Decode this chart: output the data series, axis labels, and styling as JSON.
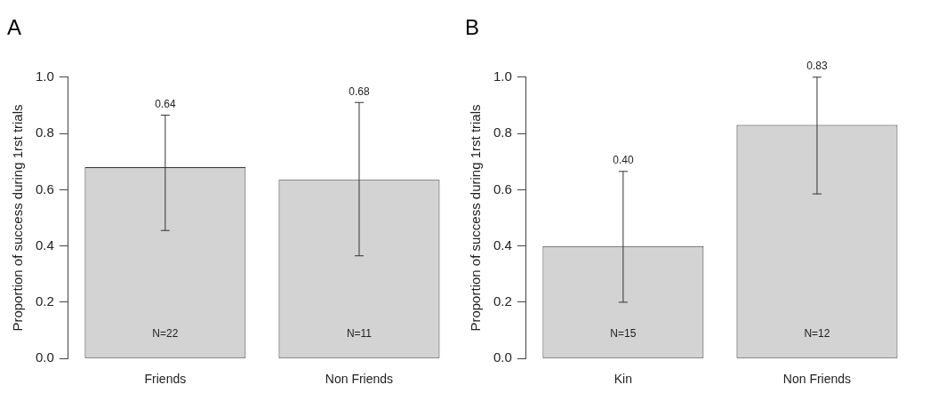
{
  "chart_data": [
    {
      "type": "bar",
      "title": "A",
      "ylabel": "Proportion of success during 1rst trials",
      "categories": [
        "Friends",
        "Non Friends"
      ],
      "values": [
        0.68,
        0.635
      ],
      "color": "#d3d3d3",
      "errors": [
        [
          0.455,
          0.865
        ],
        [
          0.365,
          0.91
        ]
      ],
      "ylim": [
        0,
        1
      ],
      "yticks": [
        {
          "value": 0,
          "label": "0.0"
        },
        {
          "value": 0.2,
          "label": "0.2"
        },
        {
          "value": 0.4,
          "label": "0.4"
        },
        {
          "value": 0.6,
          "label": "0.6"
        },
        {
          "value": 0.8,
          "label": "0.8"
        },
        {
          "value": 1,
          "label": "1.0"
        }
      ],
      "grid": false,
      "legend": false,
      "annotations": [
        "0.64",
        "0.68",
        "N=22",
        "N=11"
      ]
    },
    {
      "type": "bar",
      "title": "B",
      "ylabel": "Proportion of success during 1rst trials",
      "categories": [
        "Kin",
        "Non Friends"
      ],
      "values": [
        0.4,
        0.83
      ],
      "color": "#d3d3d3",
      "errors": [
        [
          0.2,
          0.665
        ],
        [
          0.585,
          1.0
        ]
      ],
      "ylim": [
        0,
        1
      ],
      "yticks": [
        {
          "value": 0,
          "label": "0.0"
        },
        {
          "value": 0.2,
          "label": "0.2"
        },
        {
          "value": 0.4,
          "label": "0.4"
        },
        {
          "value": 0.6,
          "label": "0.6"
        },
        {
          "value": 0.8,
          "label": "0.8"
        },
        {
          "value": 1,
          "label": "1.0"
        }
      ],
      "grid": false,
      "legend": false,
      "annotations": [
        "0.40",
        "0.83",
        "N=15",
        "N=12"
      ]
    }
  ]
}
